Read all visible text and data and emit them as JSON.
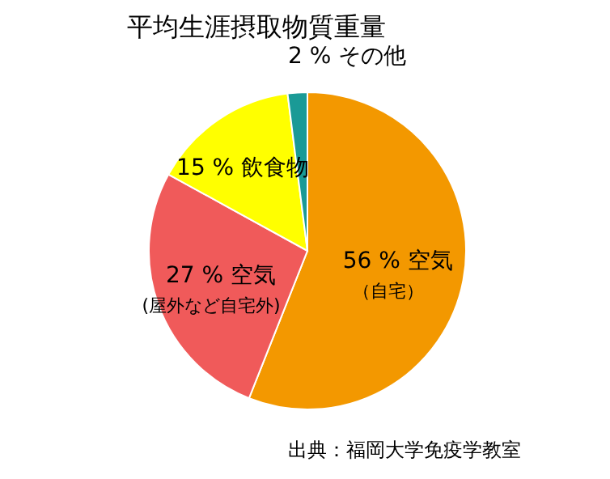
{
  "chart_data": {
    "type": "pie",
    "title": "平均生涯摂取物質重量",
    "categories": [
      "空気（自宅）",
      "空気(屋外など自宅外)",
      "飲食物",
      "その他"
    ],
    "values": [
      56,
      27,
      15,
      2
    ],
    "value_labels": [
      "56 %",
      "27 %",
      "15 %",
      "2 %"
    ],
    "colors": [
      "#f39800",
      "#f05a5a",
      "#ffff00",
      "#1a9a96"
    ],
    "annotations": [
      "出典：福岡大学免疫学教室"
    ]
  }
}
